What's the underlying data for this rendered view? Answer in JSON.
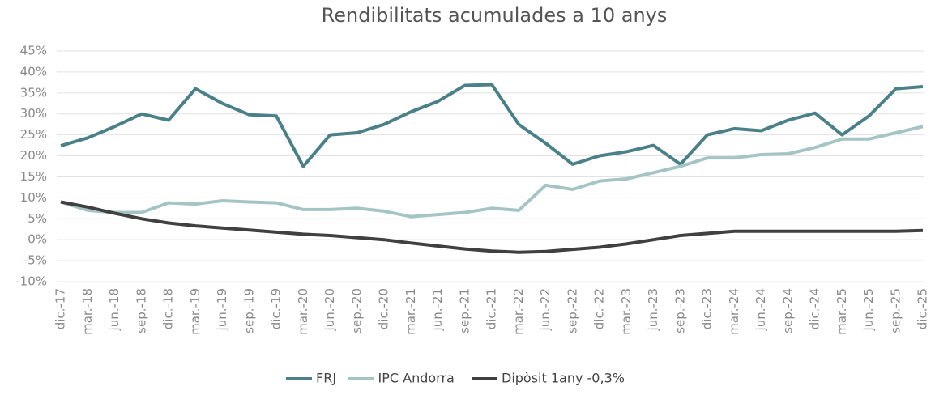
{
  "chart_data": {
    "type": "line",
    "title": "Rendibilitats acumulades a 10 anys",
    "categories": [
      "dic.-17",
      "mar.-18",
      "jun.-18",
      "sep.-18",
      "dic.-18",
      "mar.-19",
      "jun.-19",
      "sep.-19",
      "dic.-19",
      "mar.-20",
      "jun.-20",
      "sep.-20",
      "dic.-20",
      "mar.-21",
      "jun.-21",
      "sep.-21",
      "dic.-21",
      "mar.-22",
      "jun.-22",
      "sep.-22",
      "dic.-22",
      "mar.-23",
      "jun.-23",
      "sep.-23",
      "dic.-23",
      "mar.-24",
      "jun.-24",
      "sep.-24",
      "dic.-24",
      "mar.-25",
      "jun.-25",
      "sep.-25",
      "dic.-25"
    ],
    "series": [
      {
        "name": "FRJ",
        "color": "#4a8088",
        "values": [
          22.4,
          24.3,
          27,
          30,
          28.5,
          36,
          32.5,
          29.8,
          29.5,
          17.5,
          25,
          25.5,
          27.5,
          30.5,
          33,
          36.8,
          37,
          27.5,
          23,
          18,
          20,
          21,
          22.5,
          18,
          25,
          26.5,
          26,
          28.5,
          30.2,
          25,
          29.5,
          36,
          36.5
        ]
      },
      {
        "name": "IPC Andorra",
        "color": "#a5c4c4",
        "values": [
          9,
          7,
          6.5,
          6.5,
          8.8,
          8.5,
          9.3,
          9,
          8.8,
          7.2,
          7.2,
          7.5,
          6.8,
          5.5,
          6,
          6.5,
          7.5,
          7,
          13,
          12,
          14,
          14.5,
          16,
          17.5,
          19.5,
          19.5,
          20.3,
          20.5,
          22,
          24,
          24,
          25.5,
          27
        ]
      },
      {
        "name": "Dipòsit 1any -0,3%",
        "color": "#404040",
        "values": [
          9,
          7.8,
          6.3,
          5,
          4,
          3.3,
          2.8,
          2.3,
          1.8,
          1.3,
          1,
          0.5,
          0,
          -0.8,
          -1.5,
          -2.2,
          -2.7,
          -3,
          -2.8,
          -2.3,
          -1.8,
          -1,
          0,
          1,
          1.5,
          2,
          2,
          2,
          2,
          2,
          2,
          2,
          2.2
        ]
      }
    ],
    "ylim": [
      -10,
      45
    ],
    "yticks": [
      {
        "value": -10,
        "label": "-10%"
      },
      {
        "value": -5,
        "label": "-5%"
      },
      {
        "value": 0,
        "label": "0%"
      },
      {
        "value": 5,
        "label": "5%"
      },
      {
        "value": 10,
        "label": "10%"
      },
      {
        "value": 15,
        "label": "15%"
      },
      {
        "value": 20,
        "label": "20%"
      },
      {
        "value": 25,
        "label": "25%"
      },
      {
        "value": 30,
        "label": "30%"
      },
      {
        "value": 35,
        "label": "35%"
      },
      {
        "value": 40,
        "label": "40%"
      },
      {
        "value": 45,
        "label": "45%"
      }
    ],
    "grid": true,
    "legend": "bottom"
  }
}
